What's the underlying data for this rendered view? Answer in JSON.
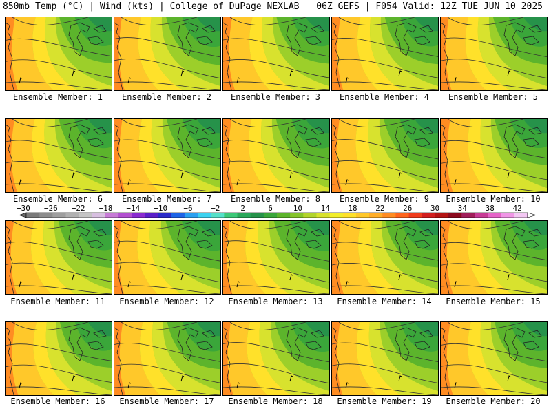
{
  "header": {
    "left": "850mb Temp (°C) | Wind (kts) | College of DuPage NEXLAB",
    "right": "06Z GEFS | F054 Valid: 12Z TUE JUN 10 2025"
  },
  "colorbar": {
    "labels": [
      "-30",
      "-26",
      "-22",
      "-18",
      "-14",
      "-10",
      "-6",
      "-2",
      "2",
      "6",
      "10",
      "14",
      "18",
      "22",
      "26",
      "30",
      "34",
      "38",
      "42"
    ],
    "colors": [
      "#7a7a7a",
      "#8c8c8c",
      "#9e9e9e",
      "#b0b0b0",
      "#c4c4c4",
      "#d7bfe0",
      "#c77ad6",
      "#b24fd0",
      "#8a2bd0",
      "#5a1fc8",
      "#2a2ac8",
      "#1e64e6",
      "#2aa0f0",
      "#3cd2f0",
      "#55e0c8",
      "#3cc878",
      "#2aa85a",
      "#26924a",
      "#3aa63a",
      "#5cb42c",
      "#86c42a",
      "#b2d42c",
      "#d8e22e",
      "#f2ee2a",
      "#ffe12a",
      "#ffc82a",
      "#ffae28",
      "#ff8c22",
      "#ff641c",
      "#f03c1c",
      "#d21e1e",
      "#b41414",
      "#8c0a1e",
      "#a01e5a",
      "#c83c96",
      "#e664c8",
      "#f096e6",
      "#f4c8f4"
    ]
  },
  "panels": [
    {
      "label": "Ensemble Member: 1",
      "warm": 0.55
    },
    {
      "label": "Ensemble Member: 2",
      "warm": 0.35
    },
    {
      "label": "Ensemble Member: 3",
      "warm": 0.5
    },
    {
      "label": "Ensemble Member: 4",
      "warm": 0.45
    },
    {
      "label": "Ensemble Member: 5",
      "warm": 0.4
    },
    {
      "label": "Ensemble Member: 6",
      "warm": 0.5
    },
    {
      "label": "Ensemble Member: 7",
      "warm": 0.4
    },
    {
      "label": "Ensemble Member: 8",
      "warm": 0.45
    },
    {
      "label": "Ensemble Member: 9",
      "warm": 0.35
    },
    {
      "label": "Ensemble Member: 10",
      "warm": 0.55
    },
    {
      "label": "Ensemble Member: 11",
      "warm": 0.45
    },
    {
      "label": "Ensemble Member: 12",
      "warm": 0.3
    },
    {
      "label": "Ensemble Member: 13",
      "warm": 0.25
    },
    {
      "label": "Ensemble Member: 14",
      "warm": 0.5
    },
    {
      "label": "Ensemble Member: 15",
      "warm": 0.55
    },
    {
      "label": "Ensemble Member: 16",
      "warm": 0.6
    },
    {
      "label": "Ensemble Member: 17",
      "warm": 0.45
    },
    {
      "label": "Ensemble Member: 18",
      "warm": 0.35
    },
    {
      "label": "Ensemble Member: 19",
      "warm": 0.4
    },
    {
      "label": "Ensemble Member: 20",
      "warm": 0.55
    }
  ]
}
